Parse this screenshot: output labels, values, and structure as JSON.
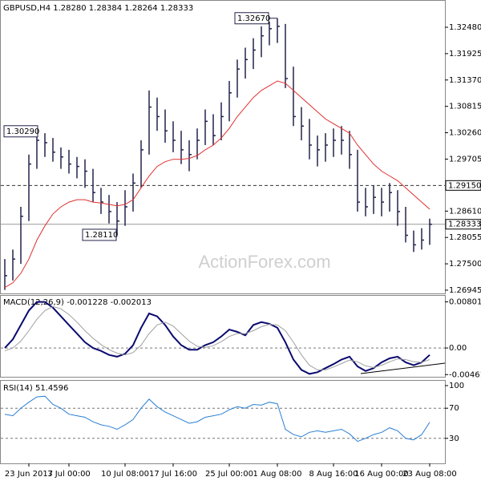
{
  "chart_data": [
    {
      "type": "ohlc",
      "title": "GBPUSD,H4 1.28280 1.28384 1.28264 1.28333",
      "watermark": "ActionForex.com",
      "color": "#22224a",
      "high": [
        1.276,
        1.278,
        1.287,
        1.298,
        1.3029,
        1.3025,
        1.3015,
        1.2995,
        1.299,
        1.2975,
        1.297,
        1.295,
        1.291,
        1.2895,
        1.288,
        1.2905,
        1.294,
        1.301,
        1.3115,
        1.31,
        1.3075,
        1.305,
        1.303,
        1.301,
        1.3035,
        1.3075,
        1.3065,
        1.309,
        1.3135,
        1.318,
        1.3205,
        1.3225,
        1.325,
        1.326,
        1.3267,
        1.3255,
        1.3165,
        1.308,
        1.3055,
        1.302,
        1.3025,
        1.3035,
        1.304,
        1.303,
        1.299,
        1.291,
        1.2915,
        1.291,
        1.292,
        1.2905,
        1.287,
        1.282,
        1.2825,
        1.2845
      ],
      "low": [
        1.2695,
        1.2715,
        1.275,
        1.284,
        1.295,
        1.2975,
        1.2965,
        1.295,
        1.294,
        1.293,
        1.291,
        1.288,
        1.2855,
        1.2835,
        1.2811,
        1.283,
        1.286,
        1.291,
        1.298,
        1.303,
        1.3005,
        1.2985,
        1.296,
        1.2945,
        1.297,
        1.3,
        1.3,
        1.301,
        1.305,
        1.31,
        1.314,
        1.316,
        1.3185,
        1.321,
        1.3215,
        1.312,
        1.304,
        1.301,
        1.297,
        1.2955,
        1.2965,
        1.2975,
        1.298,
        1.295,
        1.286,
        1.285,
        1.2855,
        1.285,
        1.286,
        1.283,
        1.2795,
        1.2775,
        1.278,
        1.279
      ],
      "close": [
        1.2725,
        1.276,
        1.285,
        1.296,
        1.301,
        1.3005,
        1.2985,
        1.2975,
        1.296,
        1.2955,
        1.2945,
        1.29,
        1.288,
        1.286,
        1.284,
        1.287,
        1.292,
        1.299,
        1.308,
        1.306,
        1.303,
        1.301,
        1.299,
        1.298,
        1.301,
        1.305,
        1.302,
        1.306,
        1.311,
        1.316,
        1.318,
        1.32,
        1.323,
        1.3245,
        1.325,
        1.314,
        1.306,
        1.304,
        1.3,
        1.299,
        1.3,
        1.301,
        1.301,
        1.298,
        1.288,
        1.287,
        1.289,
        1.288,
        1.29,
        1.286,
        1.281,
        1.279,
        1.28,
        1.28333
      ],
      "series": [
        {
          "color": "#e03030",
          "values": [
            1.27,
            1.271,
            1.273,
            1.276,
            1.28,
            1.283,
            1.2855,
            1.287,
            1.288,
            1.2885,
            1.2885,
            1.288,
            1.2878,
            1.2875,
            1.2872,
            1.2875,
            1.2885,
            1.291,
            1.2935,
            1.2955,
            1.2965,
            1.297,
            1.297,
            1.2972,
            1.2978,
            1.299,
            1.3,
            1.3015,
            1.3035,
            1.306,
            1.308,
            1.31,
            1.3115,
            1.3125,
            1.3135,
            1.313,
            1.3115,
            1.31,
            1.3085,
            1.307,
            1.3055,
            1.3045,
            1.3035,
            1.3025,
            1.3,
            1.298,
            1.296,
            1.2945,
            1.2935,
            1.2925,
            1.291,
            1.2895,
            1.288,
            1.2865
          ]
        }
      ],
      "ylim": [
        1.26894,
        1.33054
      ],
      "yticks": [
        {
          "value": 1.3248,
          "label": "1.32480"
        },
        1.31925,
        {
          "value": 1.3137,
          "label": "1.31370"
        },
        1.30815,
        {
          "value": 1.3026,
          "label": "1.30260"
        },
        1.29705,
        {
          "value": 1.2861,
          "label": "1.28610"
        },
        1.28055,
        {
          "value": 1.275,
          "label": "1.27500"
        },
        1.26945
      ],
      "annotations": [
        {
          "text": "1.30290",
          "value": 1.3029
        },
        {
          "text": "1.28110",
          "value": 1.2811
        },
        {
          "text": "1.32670",
          "value": 1.3267
        }
      ],
      "levels": [
        {
          "value": 1.2915,
          "label": "1.29150",
          "style": "dashed"
        },
        {
          "value": 1.28333,
          "label": "1.28333",
          "style": "solid"
        }
      ]
    },
    {
      "type": "line",
      "title": "MACD(12,26,9) -0.001228 -0.002013",
      "series": [
        {
          "color": "#0a0a70",
          "values": [
            0.0,
            0.0015,
            0.004,
            0.0065,
            0.008,
            0.008,
            0.007,
            0.0055,
            0.004,
            0.0025,
            0.001,
            0.0,
            -0.0005,
            -0.0012,
            -0.0015,
            -0.001,
            0.0005,
            0.0035,
            0.006,
            0.0055,
            0.004,
            0.002,
            0.0005,
            -0.0003,
            -0.0003,
            0.0005,
            0.001,
            0.002,
            0.0032,
            0.0028,
            0.0022,
            0.004,
            0.0045,
            0.0042,
            0.0035,
            0.001,
            -0.002,
            -0.0038,
            -0.0045,
            -0.0042,
            -0.0035,
            -0.0028,
            -0.002,
            -0.0015,
            -0.0032,
            -0.004,
            -0.0035,
            -0.0025,
            -0.0018,
            -0.0015,
            -0.0025,
            -0.003,
            -0.0025,
            -0.0012
          ]
        },
        {
          "color": "#a0a0a0",
          "values": [
            -0.0005,
            0.0,
            0.0012,
            0.003,
            0.005,
            0.0065,
            0.0072,
            0.0068,
            0.0058,
            0.0045,
            0.003,
            0.0017,
            0.0006,
            -0.0003,
            -0.0009,
            -0.0012,
            -0.0008,
            0.0005,
            0.0025,
            0.004,
            0.0045,
            0.0038,
            0.0025,
            0.0012,
            0.0003,
            0.0001,
            0.0004,
            0.0011,
            0.002,
            0.0025,
            0.0025,
            0.003,
            0.0037,
            0.0041,
            0.004,
            0.003,
            0.001,
            -0.0012,
            -0.003,
            -0.0038,
            -0.0038,
            -0.0033,
            -0.0027,
            -0.0021,
            -0.0024,
            -0.0031,
            -0.0034,
            -0.003,
            -0.0024,
            -0.0019,
            -0.002,
            -0.0024,
            -0.0025,
            -0.002
          ]
        }
      ],
      "ylim": [
        -0.005,
        0.0092
      ],
      "yticks": [
        0.008012,
        {
          "value": 0,
          "label": "0.00"
        },
        -0.004619
      ]
    },
    {
      "type": "line",
      "title": "RSI(14) 51.4596",
      "categories": [
        null,
        null,
        null,
        "23 Jun 2017",
        null,
        null,
        null,
        null,
        "3 Jul 00:00",
        null,
        null,
        null,
        null,
        null,
        null,
        "10 Jul 08:00",
        null,
        null,
        null,
        null,
        null,
        "17 Jul 16:00",
        null,
        null,
        null,
        null,
        null,
        null,
        "25 Jul 00:00",
        null,
        null,
        null,
        null,
        null,
        "1 Aug 08:00",
        null,
        null,
        null,
        null,
        null,
        null,
        "8 Aug 16:00",
        null,
        null,
        null,
        null,
        null,
        "16 Aug 00:00",
        null,
        null,
        null,
        null,
        null,
        "23 Aug 08:00"
      ],
      "series": [
        {
          "color": "#2a7fd4",
          "values": [
            62,
            60,
            70,
            78,
            85,
            86,
            75,
            70,
            62,
            60,
            58,
            52,
            48,
            46,
            42,
            48,
            55,
            70,
            82,
            72,
            65,
            60,
            55,
            50,
            52,
            58,
            60,
            62,
            68,
            72,
            70,
            75,
            74,
            78,
            76,
            42,
            35,
            32,
            38,
            40,
            38,
            40,
            42,
            36,
            26,
            30,
            35,
            38,
            44,
            40,
            30,
            28,
            35,
            51.4596
          ]
        }
      ],
      "ylim": [
        0,
        100
      ],
      "yticks": [
        100,
        70,
        30
      ]
    }
  ]
}
